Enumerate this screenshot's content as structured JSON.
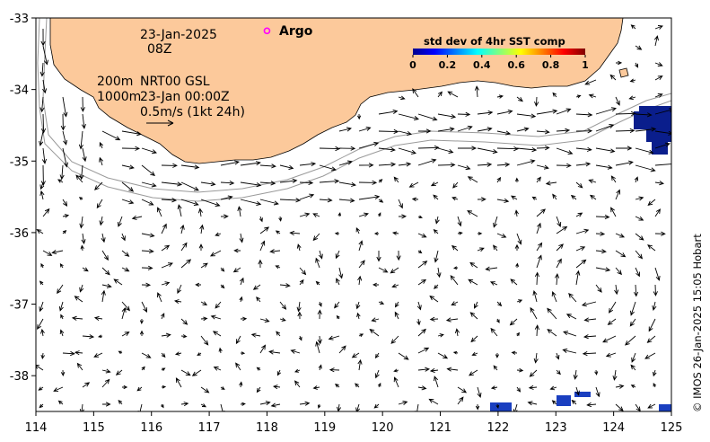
{
  "map": {
    "x_axis": {
      "ticks": [
        "114",
        "115",
        "116",
        "117",
        "118",
        "119",
        "120",
        "121",
        "122",
        "123",
        "124",
        "125"
      ]
    },
    "y_axis": {
      "ticks": [
        "-33",
        "-34",
        "-35",
        "-36",
        "-37",
        "-38"
      ]
    },
    "lon_range": [
      114,
      125
    ],
    "lat_range": [
      -38.5,
      -33
    ],
    "colors": {
      "land": "#fcc99b",
      "arrow": "#000000",
      "isobath": "#9a9a9a",
      "argo": "#ff00ff",
      "sst_patch": "#0a1e8c"
    }
  },
  "annotations": {
    "date": "23-Jan-2025",
    "hour": "08Z",
    "isobath_200": "200m",
    "isobath_1000": "1000m",
    "product": "NRT00 GSL",
    "analysis_time": "23-Jan 00:00Z",
    "scale_label": "0.5m/s (1kt 24h)"
  },
  "legend": {
    "argo_label": "Argo",
    "argo_lon": 118.0,
    "argo_lat": -33.18
  },
  "colorbar": {
    "title": "std dev of 4hr SST comp",
    "ticks": [
      "0",
      "0.2",
      "0.4",
      "0.6",
      "0.8",
      "1"
    ]
  },
  "credit": "© IMOS 26-Jan-2025 15:05 Hobart"
}
